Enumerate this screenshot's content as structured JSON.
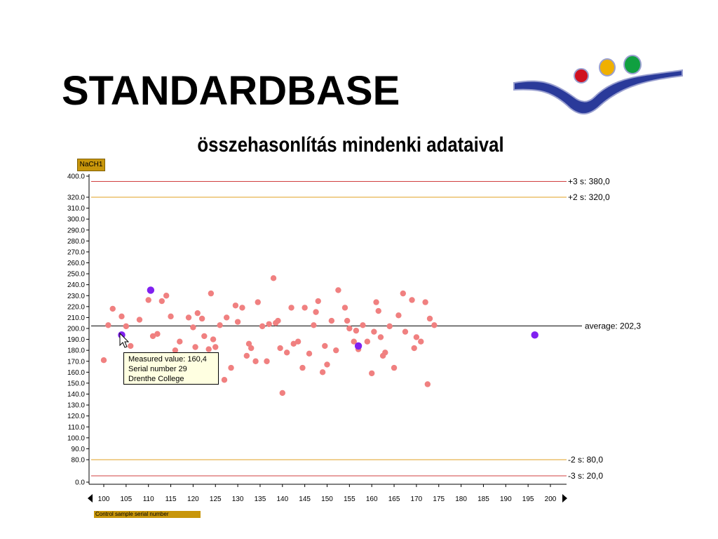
{
  "slide": {
    "title": "STANDARDBASE",
    "subtitle": "összehasonlítás mindenki adataival"
  },
  "tooltip": {
    "line1": "Measured value: 160,4",
    "line2": "Serial number 29",
    "line3": "Drenthe College"
  },
  "logo": {
    "icon": "europe-logo-icon",
    "colors": [
      "#d01020",
      "#f0b000",
      "#10a040",
      "#2a3a9a"
    ]
  },
  "chart_data": {
    "type": "scatter",
    "parameter_badge": "NaCH1",
    "footer_badge": "Control sample serial number",
    "xlim": [
      100,
      200
    ],
    "ylim": [
      0,
      400
    ],
    "x_ticks": [
      100,
      105,
      110,
      115,
      120,
      125,
      130,
      135,
      140,
      145,
      150,
      155,
      160,
      165,
      170,
      175,
      180,
      185,
      190,
      195,
      200
    ],
    "y_ticks": [
      "0.0",
      "80.0",
      "90.0",
      "100.0",
      "110.0",
      "120.0",
      "130.0",
      "140.0",
      "150.0",
      "160.0",
      "170.0",
      "180.0",
      "190.0",
      "200.0",
      "210.0",
      "220.0",
      "230.0",
      "240.0",
      "250.0",
      "260.0",
      "270.0",
      "280.0",
      "290.0",
      "300.0",
      "310.0",
      "320.0",
      "400.0"
    ],
    "reference_lines": [
      {
        "label": "+3 s: 380,0",
        "color": "#d04040"
      },
      {
        "label": "+2 s: 320,0",
        "color": "#e0a020"
      },
      {
        "label": "average: 202,3",
        "color": "#000000"
      },
      {
        "label": "-2 s: 80,0",
        "color": "#e0a020"
      },
      {
        "label": "-3 s: 20,0",
        "color": "#d04040"
      }
    ],
    "colors": {
      "point": "#f08080",
      "highlight": "#8020f0",
      "grid": "#cccccc"
    },
    "series": [
      {
        "values": [
          [
            100,
            171
          ],
          [
            101,
            203
          ],
          [
            102,
            218
          ],
          [
            104,
            211
          ],
          [
            105,
            202
          ],
          [
            106,
            184
          ],
          [
            108,
            208
          ],
          [
            110,
            226
          ],
          [
            111,
            193
          ],
          [
            112,
            195
          ],
          [
            113,
            225
          ],
          [
            114,
            230
          ],
          [
            115,
            211
          ],
          [
            116,
            180
          ],
          [
            117,
            188
          ],
          [
            119,
            210
          ],
          [
            120,
            201
          ],
          [
            120.5,
            183
          ],
          [
            121,
            214
          ],
          [
            122,
            209
          ],
          [
            122.5,
            193
          ],
          [
            123.5,
            181
          ],
          [
            124,
            232
          ],
          [
            124.5,
            190
          ],
          [
            125,
            183
          ],
          [
            126,
            203
          ],
          [
            127,
            153
          ],
          [
            127.5,
            210
          ],
          [
            128.5,
            164
          ],
          [
            129.5,
            221
          ],
          [
            130,
            206
          ],
          [
            131,
            219
          ],
          [
            132,
            175
          ],
          [
            132.5,
            186
          ],
          [
            133,
            182
          ],
          [
            134,
            170
          ],
          [
            134.5,
            224
          ],
          [
            135.5,
            202
          ],
          [
            136.5,
            170
          ],
          [
            137,
            204
          ],
          [
            138,
            246
          ],
          [
            138.5,
            205
          ],
          [
            139,
            207
          ],
          [
            139.5,
            182
          ],
          [
            140,
            141
          ],
          [
            141,
            178
          ],
          [
            142,
            219
          ],
          [
            142.5,
            186
          ],
          [
            143.5,
            188
          ],
          [
            144.5,
            164
          ],
          [
            145,
            219
          ],
          [
            146,
            177
          ],
          [
            147,
            203
          ],
          [
            147.5,
            215
          ],
          [
            148,
            225
          ],
          [
            149,
            160
          ],
          [
            149.5,
            184
          ],
          [
            150,
            167
          ],
          [
            151,
            207
          ],
          [
            152,
            180
          ],
          [
            152.5,
            235
          ],
          [
            154,
            219
          ],
          [
            154.5,
            207
          ],
          [
            155,
            200
          ],
          [
            156,
            188
          ],
          [
            156.5,
            198
          ],
          [
            157,
            181
          ],
          [
            158,
            203
          ],
          [
            159,
            188
          ],
          [
            160,
            159
          ],
          [
            160.5,
            197
          ],
          [
            161,
            224
          ],
          [
            161.5,
            216
          ],
          [
            162,
            192
          ],
          [
            162.5,
            175
          ],
          [
            163,
            178
          ],
          [
            164,
            202
          ],
          [
            165,
            164
          ],
          [
            166,
            212
          ],
          [
            167,
            232
          ],
          [
            167.5,
            197
          ],
          [
            169,
            226
          ],
          [
            169.5,
            182
          ],
          [
            170,
            192
          ],
          [
            171,
            188
          ],
          [
            172,
            224
          ],
          [
            172.5,
            149
          ],
          [
            173,
            209
          ],
          [
            174,
            203
          ]
        ]
      },
      {
        "name": "highlighted",
        "values": [
          [
            104,
            194
          ],
          [
            110.5,
            235
          ],
          [
            157,
            184
          ],
          [
            196.5,
            194
          ]
        ]
      }
    ]
  }
}
